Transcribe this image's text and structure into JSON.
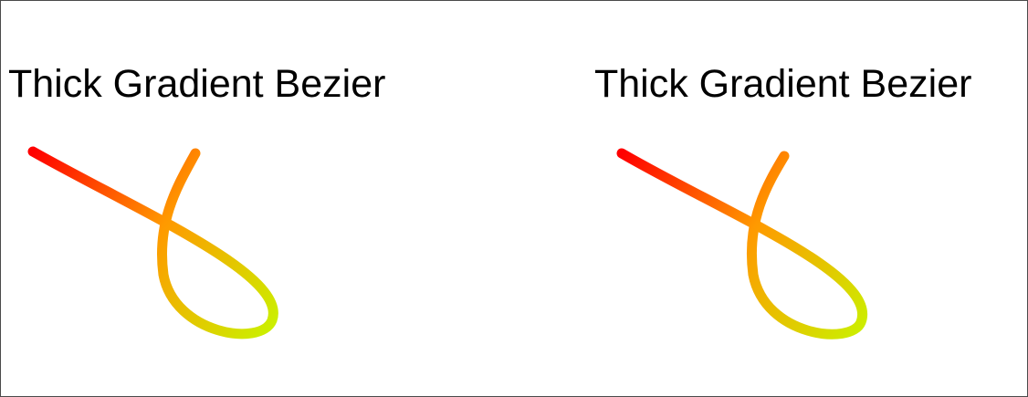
{
  "panels": [
    {
      "title": "Thick Gradient Bezier"
    },
    {
      "title": "Thick Gradient Bezier"
    }
  ],
  "colors": {
    "gradient_start": "#ff0000",
    "gradient_mid": "#ff9900",
    "gradient_end": "#ccee00",
    "border": "#4a4a4a",
    "background": "#ffffff"
  }
}
